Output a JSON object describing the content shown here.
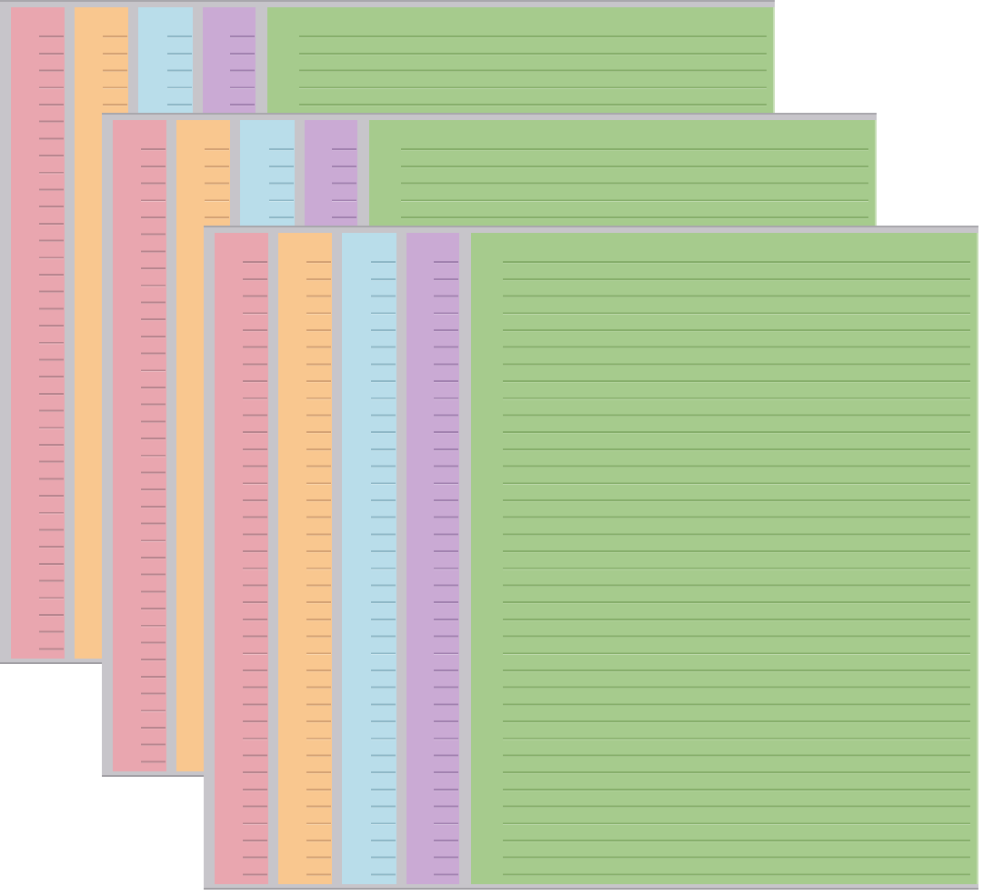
{
  "image": {
    "kind": "product-photo",
    "description": "Three stacked sets of pastel ruled memo pads arranged in a diagonal cascade on a white background. Each set has four narrow lined strip pads in pink, orange, blue and purple with gray pad edges, plus one wide green lined notepad; every pad shows evenly spaced horizontal ruled lines.",
    "background_color": "#ffffff"
  },
  "colors": {
    "edge_gray": "#c7c5ca",
    "edge_dark_top": "#a8a7ac",
    "edge_dark_bottom": "#a19fa4",
    "pink": "#e9a6af",
    "pink_line": "#b7858e",
    "orange": "#f9c78f",
    "orange_line": "#d4a274",
    "blue": "#b9ddea",
    "blue_line": "#8eb7c6",
    "purple": "#caaad4",
    "purple_line": "#a181af",
    "green": "#a6cb8d",
    "green_line": "#86ae6b"
  },
  "sets": [
    {
      "name": "back-set",
      "position": "top-left"
    },
    {
      "name": "middle-set",
      "position": "center"
    },
    {
      "name": "front-set",
      "position": "bottom-right"
    }
  ],
  "pads_per_set": [
    {
      "name": "pink-strip-pad",
      "type": "narrow ruled strip",
      "color_key": "pink"
    },
    {
      "name": "orange-strip-pad",
      "type": "narrow ruled strip",
      "color_key": "orange"
    },
    {
      "name": "blue-strip-pad",
      "type": "narrow ruled strip",
      "color_key": "blue"
    },
    {
      "name": "purple-strip-pad",
      "type": "narrow ruled strip",
      "color_key": "purple"
    },
    {
      "name": "green-notepad",
      "type": "wide ruled notepad",
      "color_key": "green"
    }
  ]
}
